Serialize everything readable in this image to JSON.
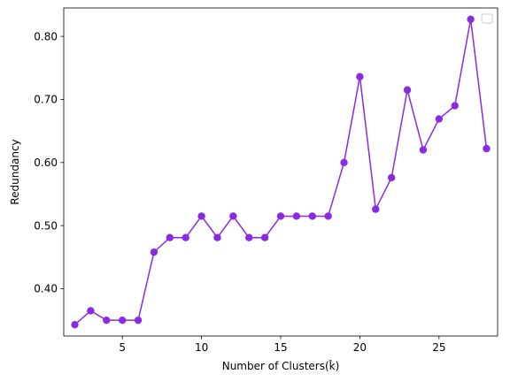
{
  "chart_data": {
    "type": "line",
    "title": "",
    "xlabel": "Number of Clusters(k̂)",
    "ylabel": "Redundancy",
    "xlim": [
      1.3,
      28.7
    ],
    "ylim": [
      0.325,
      0.845
    ],
    "x_ticks": [
      5,
      10,
      15,
      20,
      25
    ],
    "x_tick_labels": [
      "5",
      "10",
      "15",
      "20",
      "25"
    ],
    "y_ticks": [
      0.4,
      0.5,
      0.6,
      0.7,
      0.8
    ],
    "y_tick_labels": [
      "0.40",
      "0.50",
      "0.60",
      "0.70",
      "0.80"
    ],
    "grid": false,
    "legend": {
      "placement": "upper right",
      "entries": []
    },
    "series": [
      {
        "color": "#8a2be2",
        "marker": "circle",
        "x": [
          2,
          3,
          4,
          5,
          6,
          7,
          8,
          9,
          10,
          11,
          12,
          13,
          14,
          15,
          16,
          17,
          18,
          19,
          20,
          21,
          22,
          23,
          24,
          25,
          26,
          27,
          28
        ],
        "y": [
          0.343,
          0.365,
          0.35,
          0.35,
          0.35,
          0.458,
          0.481,
          0.481,
          0.515,
          0.481,
          0.515,
          0.481,
          0.481,
          0.515,
          0.515,
          0.515,
          0.515,
          0.6,
          0.736,
          0.526,
          0.576,
          0.715,
          0.62,
          0.669,
          0.69,
          0.827,
          0.622
        ]
      }
    ]
  }
}
